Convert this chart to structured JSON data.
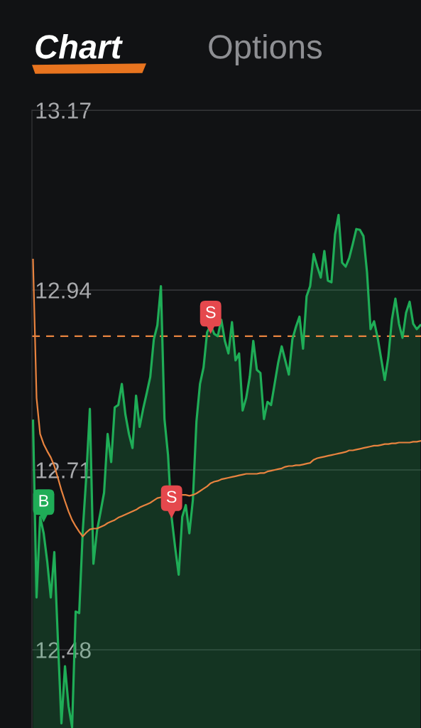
{
  "chart_data": {
    "type": "area",
    "annotations": [
      "Chart",
      "Options"
    ],
    "categories": [
      null,
      null,
      null,
      null,
      null,
      null,
      null,
      null,
      null,
      null,
      null,
      null,
      null,
      null,
      null,
      null,
      null,
      null,
      null,
      null,
      null,
      null,
      null,
      null,
      null,
      null,
      null,
      null,
      null,
      null,
      null,
      null,
      null,
      null,
      null,
      null,
      null,
      null,
      null,
      null,
      null,
      null,
      null,
      null,
      null,
      null,
      null,
      null,
      null,
      null,
      null,
      null,
      null,
      null,
      null,
      null,
      null,
      null,
      null,
      null,
      null,
      null,
      null,
      null,
      null,
      null,
      null,
      null,
      null,
      null,
      null,
      null,
      null,
      null,
      null,
      null,
      null,
      null,
      null,
      null,
      null,
      null,
      null,
      null,
      null,
      null,
      null,
      null,
      null,
      null,
      null,
      null,
      null,
      null,
      null,
      null,
      null,
      null,
      null,
      null,
      null,
      null,
      null,
      null,
      null,
      null,
      null,
      null,
      null,
      null
    ],
    "series": [
      {
        "color": "#1fad57",
        "values": [
          12.773,
          12.547,
          12.65,
          12.629,
          12.593,
          12.547,
          12.605,
          12.493,
          12.386,
          12.459,
          12.408,
          12.381,
          12.529,
          12.527,
          12.632,
          12.702,
          12.788,
          12.59,
          12.632,
          12.656,
          12.681,
          12.756,
          12.72,
          12.79,
          12.793,
          12.82,
          12.781,
          12.756,
          12.738,
          12.805,
          12.765,
          12.788,
          12.808,
          12.829,
          12.877,
          12.895,
          12.945,
          12.775,
          12.729,
          12.65,
          12.611,
          12.576,
          12.65,
          12.665,
          12.629,
          12.672,
          12.772,
          12.82,
          12.841,
          12.886,
          12.895,
          12.884,
          12.881,
          12.902,
          12.875,
          12.859,
          12.899,
          12.85,
          12.859,
          12.786,
          12.802,
          12.829,
          12.875,
          12.838,
          12.834,
          12.775,
          12.797,
          12.793,
          12.82,
          12.847,
          12.868,
          12.85,
          12.832,
          12.877,
          12.893,
          12.906,
          12.865,
          12.932,
          12.945,
          12.986,
          12.97,
          12.956,
          12.99,
          12.952,
          12.95,
          13.011,
          13.036,
          12.975,
          12.97,
          12.981,
          12.999,
          13.018,
          13.017,
          13.009,
          12.963,
          12.89,
          12.9,
          12.879,
          12.852,
          12.825,
          12.854,
          12.902,
          12.929,
          12.897,
          12.879,
          12.911,
          12.925,
          12.897,
          12.89,
          12.895
        ]
      },
      {
        "type": "line",
        "color": "#e8833f",
        "values": [
          12.979,
          12.802,
          12.756,
          12.743,
          12.734,
          12.726,
          12.715,
          12.7,
          12.684,
          12.67,
          12.657,
          12.646,
          12.638,
          12.631,
          12.625,
          12.63,
          12.634,
          12.635,
          12.635,
          12.637,
          12.639,
          12.642,
          12.644,
          12.646,
          12.649,
          12.651,
          12.653,
          12.655,
          12.657,
          12.659,
          12.662,
          12.664,
          12.666,
          12.668,
          12.671,
          12.674,
          12.675,
          null,
          null,
          null,
          null,
          null,
          12.678,
          12.678,
          12.677,
          12.678,
          12.68,
          12.683,
          12.686,
          12.689,
          12.693,
          12.695,
          12.696,
          12.698,
          12.699,
          12.7,
          12.701,
          12.702,
          12.703,
          12.704,
          12.705,
          12.705,
          12.705,
          12.705,
          12.706,
          12.706,
          12.708,
          12.709,
          12.71,
          12.711,
          12.712,
          12.714,
          12.715,
          12.715,
          12.716,
          12.716,
          12.717,
          12.718,
          12.719,
          12.723,
          12.725,
          12.726,
          12.727,
          12.728,
          12.729,
          12.73,
          12.731,
          12.732,
          12.733,
          12.735,
          12.735,
          12.736,
          12.737,
          12.738,
          12.739,
          12.74,
          12.741,
          12.741,
          12.742,
          12.743,
          12.743,
          12.744,
          12.744,
          12.745,
          12.745,
          12.745,
          12.745,
          12.746,
          12.746,
          12.747
        ]
      },
      {
        "type": "scatter",
        "name": "B",
        "color": "#1fad57",
        "values": [
          null,
          null,
          null,
          12.65,
          null,
          null,
          null,
          null,
          null,
          null,
          null,
          null,
          null,
          null,
          null,
          null,
          null,
          null,
          null,
          null,
          null,
          null,
          null,
          null,
          null,
          null,
          null,
          null,
          null,
          null,
          null,
          null,
          null,
          null,
          null,
          null,
          null,
          null,
          null,
          null,
          null,
          null,
          null,
          null,
          null,
          null,
          null,
          null,
          null,
          null,
          null,
          null,
          null,
          null,
          null,
          null,
          null,
          null,
          null,
          null,
          null,
          null,
          null,
          null,
          null,
          null,
          null,
          null,
          null,
          null,
          null,
          null,
          null,
          null,
          null,
          null,
          null,
          null,
          null,
          null,
          null,
          null,
          null,
          null,
          null,
          null,
          null,
          null,
          null,
          null,
          null,
          null,
          null,
          null,
          null,
          null,
          null,
          null,
          null,
          null,
          null,
          null,
          null,
          null,
          null,
          null,
          null,
          null,
          null,
          null
        ]
      },
      {
        "type": "scatter",
        "name": "S",
        "color": "#e5484d",
        "values": [
          null,
          null,
          null,
          null,
          null,
          null,
          null,
          null,
          null,
          null,
          null,
          null,
          null,
          null,
          null,
          null,
          null,
          null,
          null,
          null,
          null,
          null,
          null,
          null,
          null,
          null,
          null,
          null,
          null,
          null,
          null,
          null,
          null,
          null,
          null,
          null,
          null,
          null,
          null,
          12.655,
          null,
          null,
          null,
          null,
          null,
          null,
          null,
          null,
          null,
          null,
          12.891,
          null,
          null,
          null,
          null,
          null,
          null,
          null,
          null,
          null,
          null,
          null,
          null,
          null,
          null,
          null,
          null,
          null,
          null,
          null,
          null,
          null,
          null,
          null,
          null,
          null,
          null,
          null,
          null,
          null,
          null,
          null,
          null,
          null,
          null,
          null,
          null,
          null,
          null,
          null,
          null,
          null,
          null,
          null,
          null,
          null,
          null,
          null,
          null,
          null,
          null,
          null,
          null,
          null,
          null,
          null,
          null,
          null,
          null,
          null
        ]
      }
    ],
    "ylim": [
      12.38,
      13.17
    ],
    "yticks": [
      12.48,
      12.71,
      12.94,
      13.17
    ],
    "ref_lines": [
      {
        "axis": "y",
        "value": 12.881,
        "color": "#e8833f",
        "line_style": "dashed"
      }
    ],
    "grid": "y",
    "tick_labels": "y"
  }
}
